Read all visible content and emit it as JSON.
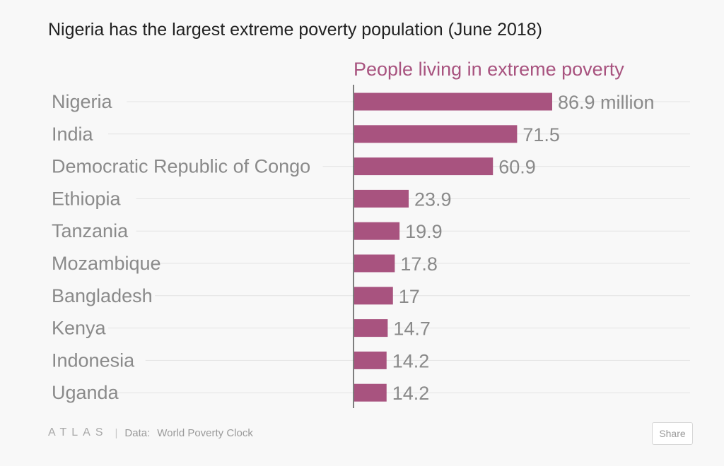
{
  "chart_data": {
    "type": "bar",
    "orientation": "horizontal",
    "title": "Nigeria has the largest extreme poverty population (June 2018)",
    "series_header": "People living in extreme poverty",
    "categories": [
      "Nigeria",
      "India",
      "Democratic Republic of Congo",
      "Ethiopia",
      "Tanzania",
      "Mozambique",
      "Bangladesh",
      "Kenya",
      "Indonesia",
      "Uganda"
    ],
    "values": [
      86.9,
      71.5,
      60.9,
      23.9,
      19.9,
      17.8,
      17,
      14.7,
      14.2,
      14.2
    ],
    "value_labels": [
      "86.9 million",
      "71.5",
      "60.9",
      "23.9",
      "19.9",
      "17.8",
      "17",
      "14.7",
      "14.2",
      "14.2"
    ],
    "unit": "million",
    "xlim": [
      0,
      100
    ],
    "grid": true,
    "bar_color": "#a8537f",
    "header_color": "#a8537f"
  },
  "footer": {
    "logo": "ATLAS",
    "separator": "|",
    "source_prefix": "Data:",
    "source": "World Poverty Clock"
  },
  "share": {
    "label": "Share"
  }
}
